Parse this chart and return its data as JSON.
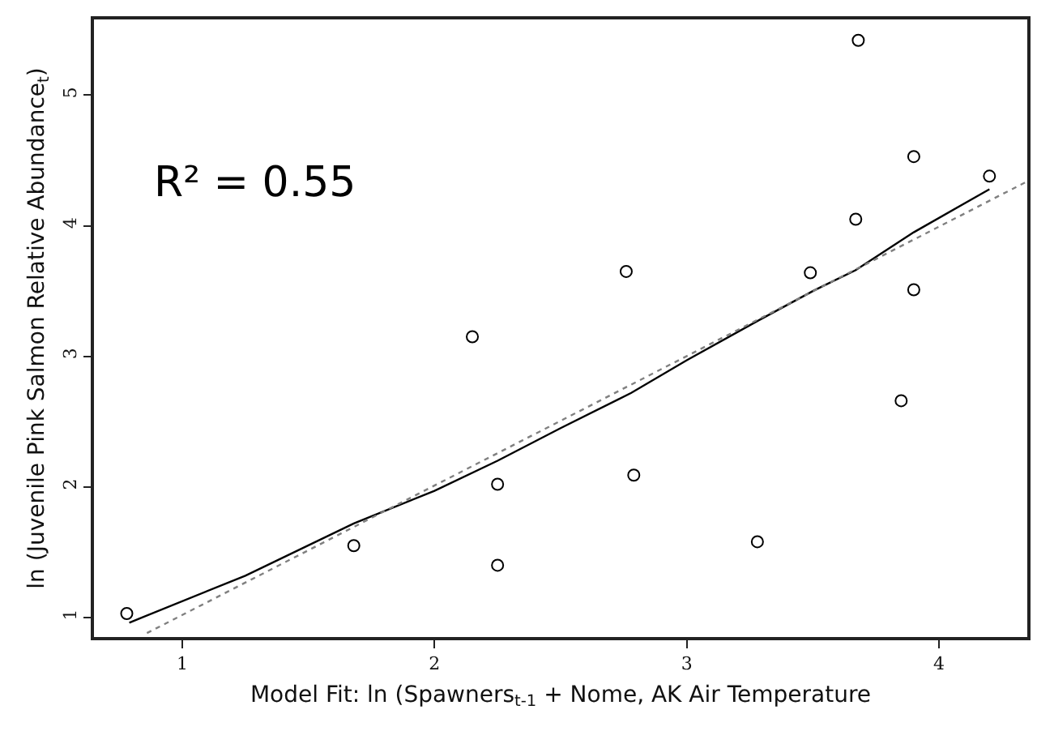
{
  "chart_data": {
    "type": "scatter",
    "xlabel": "Model Fit: ln (Spawners$_{t-1}$ + Nome, AK Air Temperature",
    "ylabel": "ln (Juvenile Pink Salmon Relative Abundance$_{t}$)",
    "annotations": [
      "R² = 0.55"
    ],
    "xlim": [
      0.65,
      4.35
    ],
    "ylim": [
      0.85,
      5.58
    ],
    "xticks": [
      1,
      2,
      3,
      4
    ],
    "yticks": [
      1,
      2,
      3,
      4,
      5
    ],
    "series": [
      {
        "marker": "circle",
        "color": "#000000",
        "x": [
          0.78,
          1.68,
          2.15,
          2.25,
          2.25,
          2.76,
          2.79,
          3.28,
          3.49,
          3.67,
          3.68,
          3.85,
          3.9,
          3.9,
          4.2
        ],
        "values": [
          1.03,
          1.55,
          3.15,
          2.02,
          1.4,
          3.65,
          2.09,
          1.58,
          3.64,
          4.05,
          5.42,
          2.66,
          4.53,
          3.51,
          4.38
        ]
      },
      {
        "type": "line",
        "marker": "none",
        "line_style": "solid",
        "color": "#000000",
        "x": [
          0.79,
          1.25,
          1.68,
          2.0,
          2.25,
          2.5,
          2.78,
          3.0,
          3.28,
          3.5,
          3.67,
          3.9,
          4.2
        ],
        "values": [
          0.96,
          1.32,
          1.72,
          1.97,
          2.2,
          2.45,
          2.72,
          2.97,
          3.27,
          3.5,
          3.66,
          3.95,
          4.28
        ]
      },
      {
        "type": "line",
        "marker": "none",
        "line_style": "dotted",
        "color": "#808080",
        "x": [
          0.86,
          4.35
        ],
        "values": [
          0.88,
          4.34
        ]
      }
    ]
  }
}
